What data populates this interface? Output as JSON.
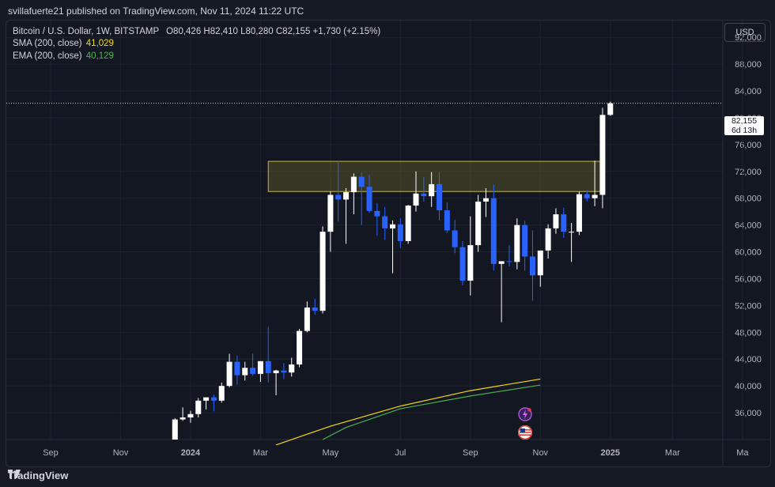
{
  "header": {
    "publisher": "svillafuerte21 published on TradingView.com, Nov 11, 2024 11:22 UTC"
  },
  "legend": {
    "symbol": "Bitcoin / U.S. Dollar, 1W, BITSTAMP",
    "ohlc": "O80,426  H82,410  L80,280  C82,155  +1,730 (+2.15%)",
    "sma_label": "SMA (200, close)",
    "sma_value": "41,029",
    "ema_label": "EMA (200, close)",
    "ema_value": "40,129"
  },
  "currency": "USD",
  "price_tag": {
    "price": "82,155",
    "countdown": "6d 13h"
  },
  "footer": {
    "brand": "TradingView"
  },
  "colors": {
    "up": "#ffffff",
    "down": "#2962ff",
    "sma": "#f5d90a",
    "ema": "#4caf50",
    "zone_border": "#c5b83a"
  },
  "chart_data": {
    "type": "candlestick",
    "y_axis": {
      "range": [
        32000,
        94500
      ],
      "ticks": [
        36000,
        40000,
        44000,
        48000,
        52000,
        56000,
        60000,
        64000,
        68000,
        72000,
        76000,
        80000,
        84000,
        88000,
        92000
      ]
    },
    "x_axis_labels": [
      {
        "label": "Sep",
        "week": -11
      },
      {
        "label": "Nov",
        "week": -2
      },
      {
        "label": "2024",
        "week": 7
      },
      {
        "label": "Mar",
        "week": 16
      },
      {
        "label": "May",
        "week": 25
      },
      {
        "label": "Jul",
        "week": 34
      },
      {
        "label": "Sep",
        "week": 43
      },
      {
        "label": "Nov",
        "week": 52
      },
      {
        "label": "2025",
        "week": 61
      },
      {
        "label": "Mar",
        "week": 69
      },
      {
        "label": "Ma",
        "week": 78
      }
    ],
    "current_price": 82155,
    "resistance_zone": {
      "low": 69000,
      "high": 73500,
      "week_start": 17,
      "week_end": 60
    },
    "candles": [
      {
        "w": 5,
        "o": 32000,
        "h": 35200,
        "l": 32000,
        "c": 35000
      },
      {
        "w": 6,
        "o": 35000,
        "h": 36800,
        "l": 34800,
        "c": 35300
      },
      {
        "w": 7,
        "o": 35300,
        "h": 36300,
        "l": 34500,
        "c": 35800
      },
      {
        "w": 8,
        "o": 35800,
        "h": 38200,
        "l": 35300,
        "c": 37800
      },
      {
        "w": 9,
        "o": 37800,
        "h": 38300,
        "l": 36500,
        "c": 38300
      },
      {
        "w": 10,
        "o": 38300,
        "h": 38700,
        "l": 36200,
        "c": 37800
      },
      {
        "w": 11,
        "o": 37800,
        "h": 40500,
        "l": 37500,
        "c": 40000
      },
      {
        "w": 12,
        "o": 40000,
        "h": 44800,
        "l": 39800,
        "c": 43600
      },
      {
        "w": 13,
        "o": 43600,
        "h": 44500,
        "l": 40200,
        "c": 41600
      },
      {
        "w": 14,
        "o": 41600,
        "h": 43600,
        "l": 40800,
        "c": 42700
      },
      {
        "w": 15,
        "o": 42700,
        "h": 44800,
        "l": 41500,
        "c": 41800
      },
      {
        "w": 16,
        "o": 41800,
        "h": 43500,
        "l": 40600,
        "c": 43700
      },
      {
        "w": 17,
        "o": 43700,
        "h": 48800,
        "l": 40500,
        "c": 41900
      },
      {
        "w": 18,
        "o": 41900,
        "h": 42400,
        "l": 38600,
        "c": 42300
      },
      {
        "w": 19,
        "o": 42300,
        "h": 43400,
        "l": 41000,
        "c": 42000
      },
      {
        "w": 20,
        "o": 42000,
        "h": 44200,
        "l": 41400,
        "c": 43200
      },
      {
        "w": 21,
        "o": 43200,
        "h": 48500,
        "l": 42800,
        "c": 48200
      },
      {
        "w": 22,
        "o": 48200,
        "h": 52600,
        "l": 48000,
        "c": 51700
      },
      {
        "w": 23,
        "o": 51700,
        "h": 53000,
        "l": 50600,
        "c": 51200
      },
      {
        "w": 24,
        "o": 51200,
        "h": 63800,
        "l": 50800,
        "c": 63000
      },
      {
        "w": 25,
        "o": 63000,
        "h": 69000,
        "l": 60000,
        "c": 68500
      },
      {
        "w": 26,
        "o": 68500,
        "h": 73600,
        "l": 64500,
        "c": 67800
      },
      {
        "w": 27,
        "o": 67800,
        "h": 69500,
        "l": 61200,
        "c": 68900
      },
      {
        "w": 28,
        "o": 68900,
        "h": 71700,
        "l": 65600,
        "c": 71200
      },
      {
        "w": 29,
        "o": 71200,
        "h": 71800,
        "l": 64000,
        "c": 69700
      },
      {
        "w": 30,
        "o": 69700,
        "h": 71500,
        "l": 65800,
        "c": 66100
      },
      {
        "w": 31,
        "o": 66100,
        "h": 67300,
        "l": 62400,
        "c": 65300
      },
      {
        "w": 32,
        "o": 65300,
        "h": 66700,
        "l": 61800,
        "c": 63500
      },
      {
        "w": 33,
        "o": 63500,
        "h": 64700,
        "l": 56800,
        "c": 64100
      },
      {
        "w": 34,
        "o": 64100,
        "h": 65000,
        "l": 60600,
        "c": 61600
      },
      {
        "w": 35,
        "o": 61600,
        "h": 67000,
        "l": 61200,
        "c": 66900
      },
      {
        "w": 36,
        "o": 66900,
        "h": 72000,
        "l": 66000,
        "c": 68700
      },
      {
        "w": 37,
        "o": 68700,
        "h": 71200,
        "l": 67500,
        "c": 68300
      },
      {
        "w": 38,
        "o": 68300,
        "h": 71900,
        "l": 66700,
        "c": 70100
      },
      {
        "w": 39,
        "o": 70100,
        "h": 71900,
        "l": 64700,
        "c": 66200
      },
      {
        "w": 40,
        "o": 66200,
        "h": 67400,
        "l": 62800,
        "c": 63200
      },
      {
        "w": 41,
        "o": 63200,
        "h": 64800,
        "l": 59800,
        "c": 60700
      },
      {
        "w": 42,
        "o": 60700,
        "h": 61600,
        "l": 55000,
        "c": 55700
      },
      {
        "w": 43,
        "o": 55700,
        "h": 65300,
        "l": 53500,
        "c": 61000
      },
      {
        "w": 44,
        "o": 61000,
        "h": 68500,
        "l": 60000,
        "c": 67500
      },
      {
        "w": 45,
        "o": 67500,
        "h": 69500,
        "l": 65200,
        "c": 68000
      },
      {
        "w": 46,
        "o": 68000,
        "h": 70000,
        "l": 57200,
        "c": 58200
      },
      {
        "w": 47,
        "o": 58200,
        "h": 58600,
        "l": 49500,
        "c": 58600
      },
      {
        "w": 48,
        "o": 58600,
        "h": 61000,
        "l": 57800,
        "c": 58500
      },
      {
        "w": 49,
        "o": 58500,
        "h": 65000,
        "l": 57400,
        "c": 64000
      },
      {
        "w": 50,
        "o": 64000,
        "h": 64600,
        "l": 57200,
        "c": 59300
      },
      {
        "w": 51,
        "o": 59300,
        "h": 63200,
        "l": 52700,
        "c": 56500
      },
      {
        "w": 52,
        "o": 56500,
        "h": 60000,
        "l": 54800,
        "c": 60200
      },
      {
        "w": 53,
        "o": 60200,
        "h": 64100,
        "l": 59000,
        "c": 63500
      },
      {
        "w": 54,
        "o": 63500,
        "h": 66500,
        "l": 62700,
        "c": 65600
      },
      {
        "w": 55,
        "o": 65600,
        "h": 66600,
        "l": 62100,
        "c": 63000
      },
      {
        "w": 56,
        "o": 63000,
        "h": 64300,
        "l": 58500,
        "c": 63000
      },
      {
        "w": 57,
        "o": 63000,
        "h": 69000,
        "l": 62500,
        "c": 68600
      },
      {
        "w": 58,
        "o": 68600,
        "h": 69200,
        "l": 67500,
        "c": 68000
      },
      {
        "w": 59,
        "o": 68000,
        "h": 73600,
        "l": 66800,
        "c": 68500
      },
      {
        "w": 60,
        "o": 68500,
        "h": 81500,
        "l": 66500,
        "c": 80426
      },
      {
        "w": 61,
        "o": 80426,
        "h": 82410,
        "l": 80280,
        "c": 82155
      }
    ],
    "sma": {
      "name": "SMA (200, close)",
      "points": [
        [
          18,
          31200
        ],
        [
          25,
          34000
        ],
        [
          34,
          37000
        ],
        [
          43,
          39300
        ],
        [
          52,
          41029
        ]
      ]
    },
    "ema": {
      "name": "EMA (200, close)",
      "points": [
        [
          24,
          32000
        ],
        [
          27,
          33800
        ],
        [
          34,
          36600
        ],
        [
          43,
          38500
        ],
        [
          52,
          40129
        ]
      ]
    }
  }
}
